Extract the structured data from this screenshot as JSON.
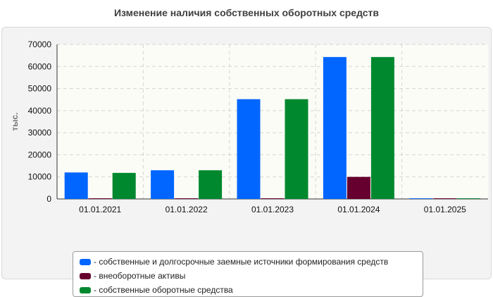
{
  "title": "Изменение наличия собственных оборотных средств",
  "chart_data": {
    "type": "bar",
    "title": "Изменение наличия собственных оборотных средств",
    "xlabel": "",
    "ylabel": "тыс.",
    "ylim": [
      0,
      70000
    ],
    "yticks": [
      0,
      10000,
      20000,
      30000,
      40000,
      50000,
      60000,
      70000
    ],
    "grid": true,
    "legend_position": "bottom",
    "categories": [
      "01.01.2021",
      "01.01.2022",
      "01.01.2023",
      "01.01.2024",
      "01.01.2025"
    ],
    "series": [
      {
        "name": "- собственные и долгосрочные заемные источники формирования средств",
        "color": "#0066ff",
        "values": [
          12000,
          13000,
          45200,
          64300,
          300
        ]
      },
      {
        "name": "- внеоборотные активы",
        "color": "#66002e",
        "values": [
          300,
          300,
          300,
          10000,
          300
        ]
      },
      {
        "name": "- собственные оборотные средства",
        "color": "#00882e",
        "values": [
          11800,
          13000,
          45200,
          64300,
          300
        ]
      }
    ]
  }
}
